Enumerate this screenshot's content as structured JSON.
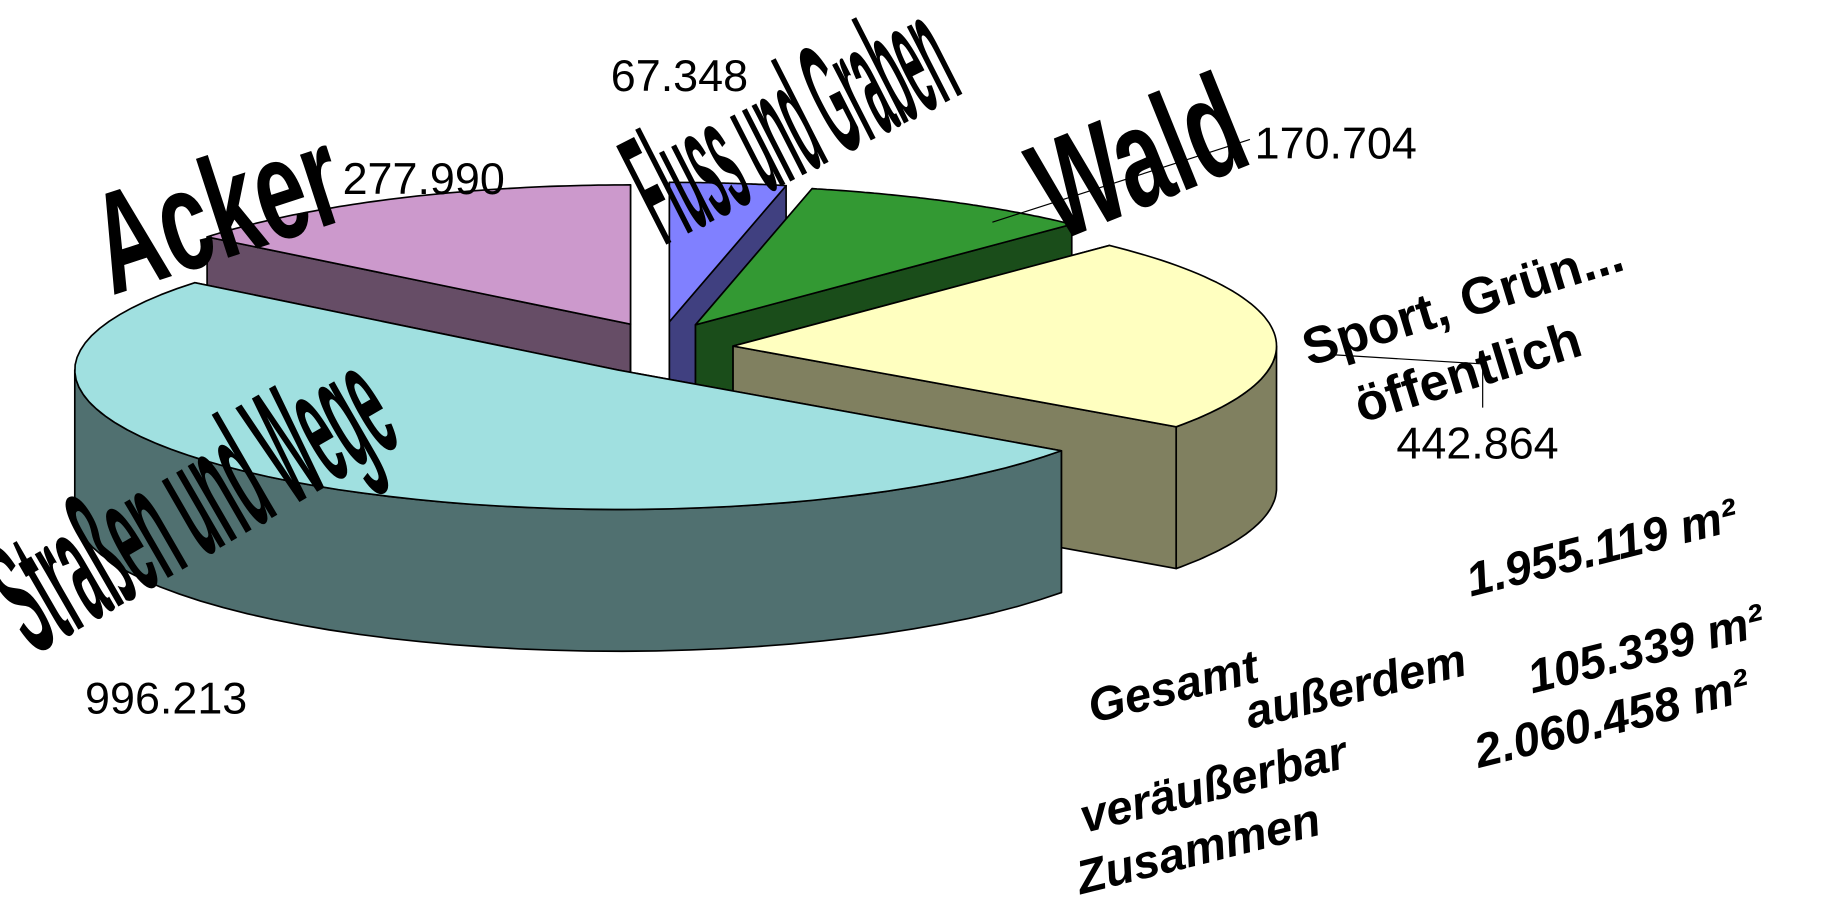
{
  "chart_data": {
    "type": "pie3d",
    "categories": [
      "Fluss und Graben",
      "Wald",
      [
        "Sport, Grün...",
        "öffentlich"
      ],
      "Straßen und Wege",
      "Acker"
    ],
    "values": [
      67348,
      170704,
      442864,
      996213,
      277990
    ],
    "value_labels": [
      "67.348",
      "170.704",
      "442.864",
      "996.213",
      "277.990"
    ],
    "colors": [
      "#8080ff",
      "#339933",
      "#ffffc0",
      "#a0e0e0",
      "#cc99cc"
    ],
    "annotations": [
      "Gesamt",
      "1.955.119 m²",
      "außerdem",
      "veräußerbar",
      "105.339 m²",
      "Zusammen",
      "2.060.458 m²"
    ]
  }
}
